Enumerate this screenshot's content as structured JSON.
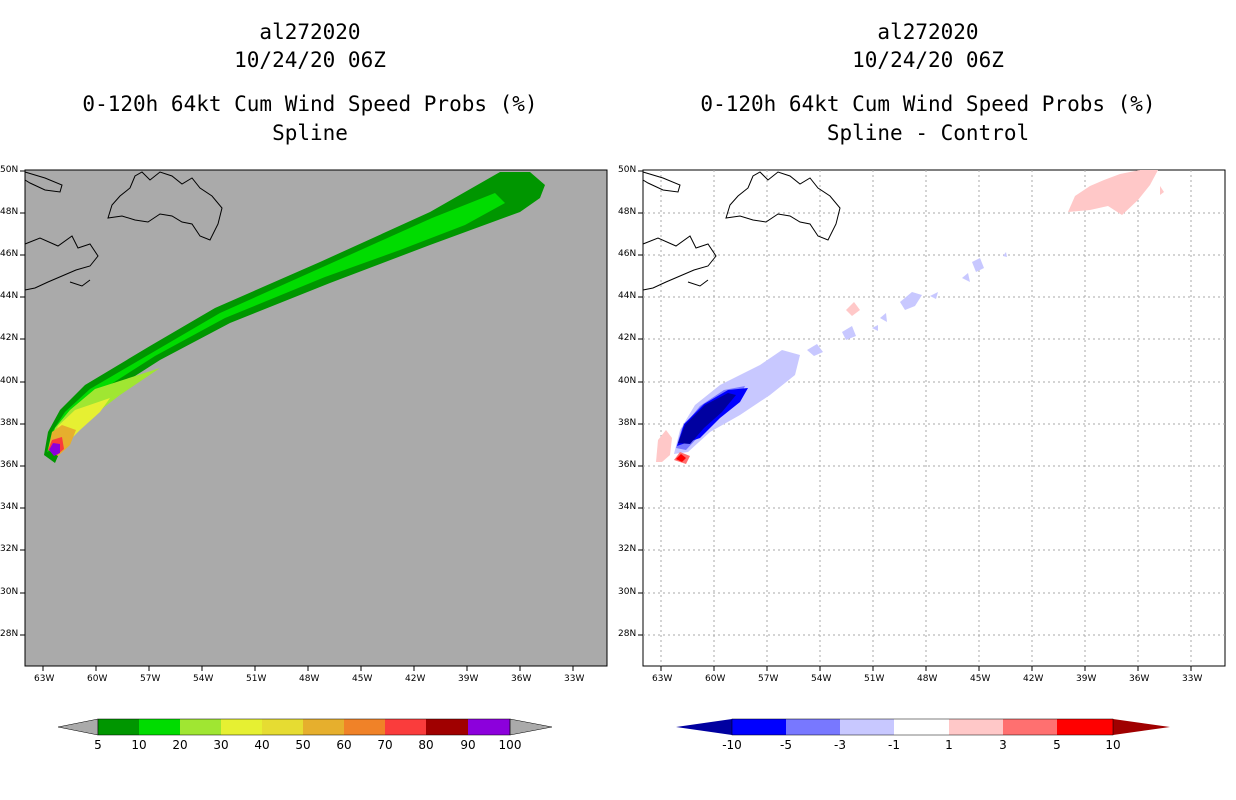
{
  "left_panel": {
    "storm": "al272020",
    "datetime": "10/24/20 06Z",
    "product": "0-120h 64kt Cum Wind Speed Probs (%)",
    "method": "Spline",
    "background": "#aaaaaa"
  },
  "right_panel": {
    "storm": "al272020",
    "datetime": "10/24/20 06Z",
    "product": "0-120h 64kt Cum Wind Speed Probs (%)",
    "method": "Spline - Control",
    "background": "#ffffff"
  },
  "map_extent": {
    "lon_ticks": [
      "63W",
      "60W",
      "57W",
      "54W",
      "51W",
      "48W",
      "45W",
      "42W",
      "39W",
      "36W",
      "33W"
    ],
    "lat_ticks": [
      "50N",
      "48N",
      "46N",
      "44N",
      "42N",
      "40N",
      "38N",
      "36N",
      "34N",
      "32N",
      "30N",
      "28N"
    ]
  },
  "left_colorbar": {
    "labels": [
      "5",
      "10",
      "20",
      "30",
      "40",
      "50",
      "60",
      "70",
      "80",
      "90",
      "100"
    ],
    "colors": [
      "#009600",
      "#00dc00",
      "#a0e632",
      "#e6f032",
      "#e6dc32",
      "#e6af2d",
      "#f08228",
      "#fa3c3c",
      "#a00000",
      "#8c00dc"
    ],
    "end_color": "#aaaaaa"
  },
  "right_colorbar": {
    "labels": [
      "-10",
      "-5",
      "-3",
      "-1",
      "1",
      "3",
      "5",
      "10"
    ],
    "colors": [
      "#0000a0",
      "#0000ff",
      "#7878ff",
      "#c8c8ff",
      "#ffffff",
      "#ffc8c8",
      "#ff7070",
      "#ff0000",
      "#a00000"
    ]
  }
}
